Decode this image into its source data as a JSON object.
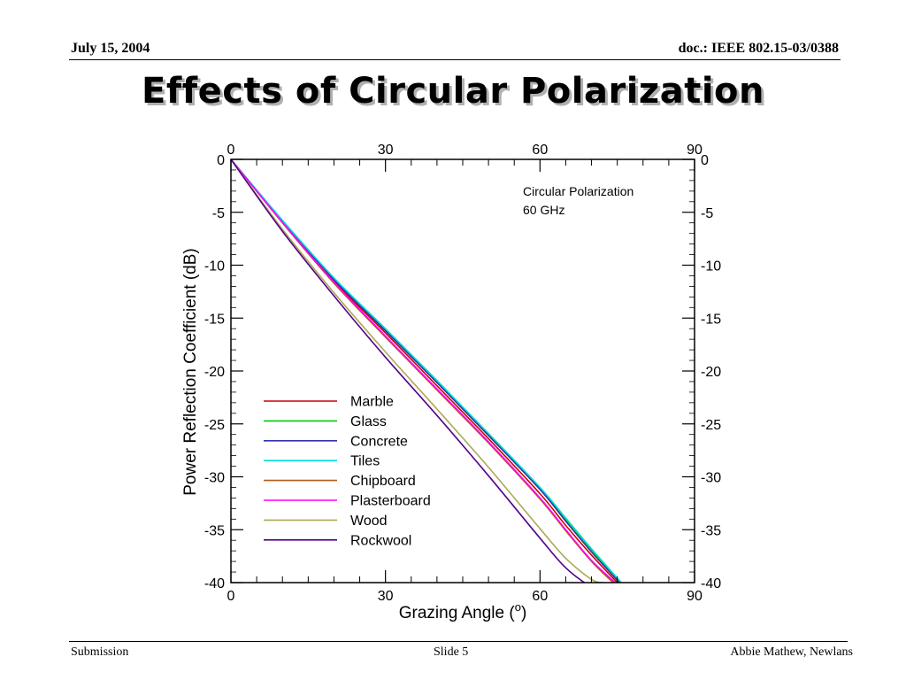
{
  "header": {
    "date": "July 15, 2004",
    "doc": "doc.: IEEE 802.15-03/0388"
  },
  "title": "Effects of Circular Polarization",
  "footer": {
    "left": "Submission",
    "center": "Slide 5",
    "right": "Abbie Mathew, Newlans"
  },
  "chart_data": {
    "type": "line",
    "title": "",
    "annotation": [
      "Circular Polarization",
      "60 GHz"
    ],
    "xlabel": "Grazing Angle (",
    "xlabel_sup": "o",
    "xlabel_end": ")",
    "ylabel": "Power Reflection Coefficient (dB)",
    "xlim": [
      0,
      90
    ],
    "ylim": [
      -40,
      0
    ],
    "xticks": [
      0,
      30,
      60,
      90
    ],
    "yticks": [
      0,
      -5,
      -10,
      -15,
      -20,
      -25,
      -30,
      -35,
      -40
    ],
    "grid": false,
    "legend_position": "lower-left",
    "series": [
      {
        "name": "Marble",
        "color": "#cc0000",
        "x": [
          0,
          10,
          20,
          30,
          40,
          50,
          60,
          65,
          70,
          75
        ],
        "y": [
          0,
          -5.9,
          -11.5,
          -16.4,
          -21.4,
          -26.4,
          -31.6,
          -34.6,
          -37.4,
          -40.0
        ]
      },
      {
        "name": "Glass",
        "color": "#00cc00",
        "x": [
          0,
          10,
          20,
          30,
          40,
          50,
          60,
          65,
          70,
          75.6
        ],
        "y": [
          0,
          -5.8,
          -11.3,
          -16.1,
          -21.0,
          -26.0,
          -31.1,
          -34.0,
          -36.9,
          -40.0
        ]
      },
      {
        "name": "Concrete",
        "color": "#3333aa",
        "x": [
          0,
          10,
          20,
          30,
          40,
          50,
          60,
          65,
          70,
          75.4
        ],
        "y": [
          0,
          -5.85,
          -11.35,
          -16.2,
          -21.1,
          -26.1,
          -31.2,
          -34.2,
          -37.1,
          -40.0
        ]
      },
      {
        "name": "Tiles",
        "color": "#00dddd",
        "x": [
          0,
          10,
          20,
          30,
          40,
          50,
          60,
          65,
          70,
          75.8
        ],
        "y": [
          0,
          -5.75,
          -11.2,
          -16.0,
          -20.9,
          -25.9,
          -31.0,
          -33.9,
          -36.8,
          -40.0
        ]
      },
      {
        "name": "Chipboard",
        "color": "#b05a1a",
        "x": [
          0,
          10,
          20,
          30,
          40,
          50,
          60,
          65,
          70,
          74.2
        ],
        "y": [
          0,
          -6.0,
          -11.7,
          -16.8,
          -21.8,
          -26.8,
          -32.1,
          -35.1,
          -38.0,
          -40.0
        ]
      },
      {
        "name": "Plasterboard",
        "color": "#ff00ff",
        "x": [
          0,
          10,
          20,
          30,
          40,
          50,
          60,
          65,
          70,
          74.6
        ],
        "y": [
          0,
          -5.95,
          -11.6,
          -16.7,
          -21.7,
          -26.7,
          -32.0,
          -35.0,
          -37.9,
          -40.0
        ]
      },
      {
        "name": "Wood",
        "color": "#aaaa55",
        "x": [
          0,
          10,
          20,
          30,
          40,
          50,
          60,
          65,
          70,
          72.2
        ],
        "y": [
          0,
          -6.6,
          -12.6,
          -18.2,
          -23.6,
          -29.1,
          -34.9,
          -37.7,
          -39.7,
          -40.0
        ]
      },
      {
        "name": "Rockwool",
        "color": "#550088",
        "x": [
          0,
          10,
          20,
          30,
          40,
          50,
          60,
          65,
          70,
          71.2
        ],
        "y": [
          0,
          -6.8,
          -12.9,
          -18.7,
          -24.2,
          -29.9,
          -35.8,
          -38.6,
          -40.4,
          -40.0
        ]
      }
    ]
  }
}
